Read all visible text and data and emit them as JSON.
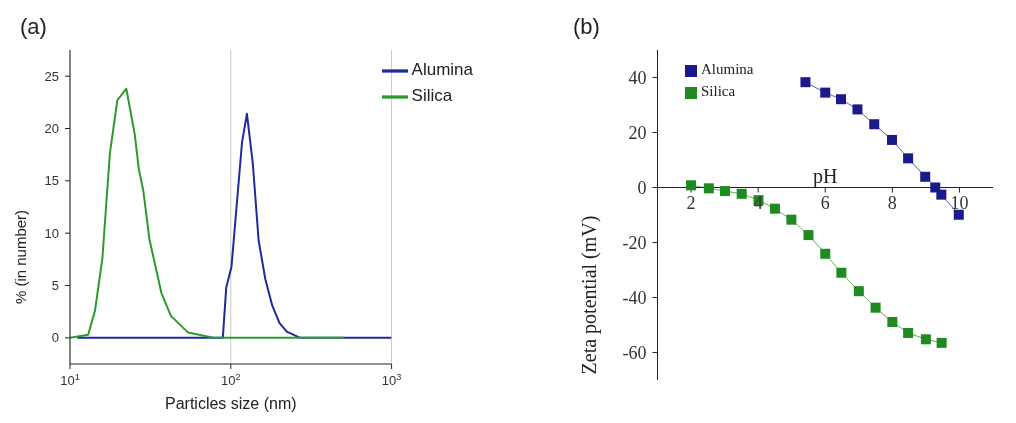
{
  "chart_data": [
    {
      "type": "line",
      "title": "(a)",
      "xlabel": "Particles size (nm)",
      "ylabel": "% (in number)",
      "log": "x",
      "xlim": [
        10,
        1000
      ],
      "xticks": [
        {
          "value": 10,
          "label": "10$^{1}$"
        },
        {
          "value": 100,
          "label": "10$^{2}$"
        },
        {
          "value": 1000,
          "label": "10$^{3}$"
        }
      ],
      "ylim": [
        -2.5,
        27.5
      ],
      "yticks": [
        0,
        5,
        10,
        15,
        20,
        25
      ],
      "grid": "x",
      "legend": "top right",
      "marker": "none",
      "line_style": "solid",
      "series": [
        {
          "name": "Alumina",
          "color": "#1f2a9c",
          "x": [
            11.1,
            89.2,
            93.7,
            101,
            117.5,
            126,
            137,
            149,
            164,
            181,
            201,
            223,
            270,
            1000
          ],
          "values": [
            0,
            0,
            4.8,
            6.8,
            18.7,
            21.4,
            16.7,
            9.3,
            5.6,
            3.1,
            1.4,
            0.6,
            0,
            0
          ]
        },
        {
          "name": "Silica",
          "color": "#2e9a2e",
          "x": [
            10,
            12.97,
            14.3,
            15.9,
            17.7,
            19.7,
            22.4,
            25.3,
            26.8,
            28.6,
            31.2,
            33.7,
            37,
            42.4,
            54.3,
            78,
            507
          ],
          "values": [
            0,
            0.3,
            2.6,
            7.6,
            17.6,
            22.7,
            23.8,
            19.4,
            16.1,
            14,
            9.4,
            7.1,
            4.3,
            2.1,
            0.5,
            0,
            0
          ]
        }
      ]
    },
    {
      "type": "line",
      "title": "(b)",
      "xlabel": "pH",
      "ylabel": "Zeta potential (mV)",
      "xlim": [
        1,
        11
      ],
      "xticks": [
        2,
        4,
        6,
        8,
        10
      ],
      "ylim": [
        -70,
        50
      ],
      "yticks": [
        -60,
        -40,
        -20,
        0,
        20,
        40
      ],
      "legend": "top left",
      "marker": "square",
      "line_style": "solid",
      "series": [
        {
          "name": "Alumina",
          "color": "#1a1a8c",
          "x": [
            5.41,
            6,
            6.47,
            6.96,
            7.46,
            7.99,
            8.47,
            8.98,
            9.28,
            9.46,
            9.98
          ],
          "values": [
            38.3,
            34.5,
            32.1,
            28.4,
            23,
            17.3,
            10.6,
            3.9,
            0,
            -2.6,
            -9.9
          ]
        },
        {
          "name": "Silica",
          "color": "#1f8a1f",
          "x": [
            2,
            2.53,
            3.01,
            3.51,
            4.01,
            4.5,
            4.99,
            5.5,
            6,
            6.48,
            7,
            7.5,
            8,
            8.47,
            9,
            9.47
          ],
          "values": [
            0.8,
            -0.3,
            -1.3,
            -2.3,
            -4.6,
            -7.7,
            -11.7,
            -17.3,
            -24.1,
            -31,
            -37.7,
            -43.7,
            -48.9,
            -52.9,
            -55.2,
            -56.5
          ]
        }
      ]
    }
  ]
}
